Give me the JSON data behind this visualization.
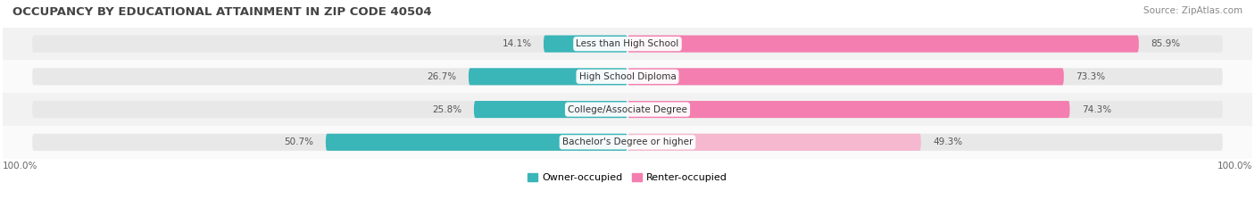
{
  "title": "OCCUPANCY BY EDUCATIONAL ATTAINMENT IN ZIP CODE 40504",
  "source": "Source: ZipAtlas.com",
  "categories": [
    "Less than High School",
    "High School Diploma",
    "College/Associate Degree",
    "Bachelor's Degree or higher"
  ],
  "owner_pct": [
    14.1,
    26.7,
    25.8,
    50.7
  ],
  "renter_pct": [
    85.9,
    73.3,
    74.3,
    49.3
  ],
  "owner_color": "#3ab5b8",
  "renter_color": "#f47eb0",
  "renter_light_color": "#f5b8cf",
  "bar_bg_color": "#e8e8e8",
  "row_bg_even": "#f2f2f2",
  "row_bg_odd": "#fafafa",
  "title_fontsize": 9.5,
  "label_fontsize": 7.5,
  "tick_fontsize": 7.5,
  "source_fontsize": 7.5,
  "legend_fontsize": 8
}
